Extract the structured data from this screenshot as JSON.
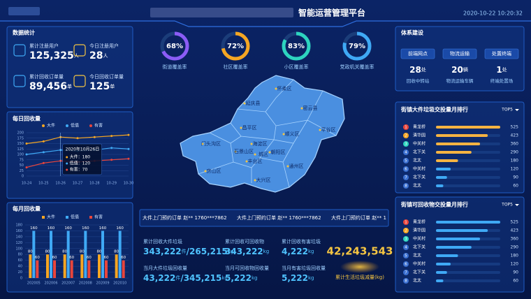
{
  "header": {
    "title": "智能运营管理平台",
    "datetime": "2020-10-22 10:20:32"
  },
  "stats_panel": {
    "title": "数据统计",
    "items": [
      {
        "label": "累计注册用户",
        "value": "125,325",
        "unit": "人"
      },
      {
        "label": "今日注册用户",
        "value": "28",
        "unit": "人"
      },
      {
        "label": "累计回收订单量",
        "value": "89,456",
        "unit": "单"
      },
      {
        "label": "今日回收订单量",
        "value": "125",
        "unit": "单"
      }
    ]
  },
  "daily_chart": {
    "type": "line",
    "title": "每日回收量",
    "categories": [
      "10-24",
      "10-25",
      "10-26",
      "10-27",
      "10-28",
      "10-29",
      "10-30"
    ],
    "series": [
      {
        "name": "大件",
        "color": "#f5a623",
        "values": [
          150,
          160,
          180,
          175,
          180,
          185,
          190
        ]
      },
      {
        "name": "低值",
        "color": "#3fa9f5",
        "values": [
          100,
          110,
          120,
          115,
          120,
          130,
          125
        ]
      },
      {
        "name": "有害",
        "color": "#e8453c",
        "values": [
          40,
          60,
          70,
          65,
          70,
          75,
          80
        ]
      }
    ],
    "ylim": [
      0,
      200
    ],
    "yticks": [
      0,
      25,
      50,
      75,
      100,
      125,
      150,
      175,
      200
    ],
    "tooltip": {
      "title": "2020年10月26日",
      "items": [
        "大件：180",
        "低值：120",
        "有害：70"
      ]
    }
  },
  "monthly_chart": {
    "type": "bar",
    "title": "每月回收量",
    "categories": [
      "202005",
      "202006",
      "202007",
      "202008",
      "202009",
      "202010"
    ],
    "series": [
      {
        "name": "大件",
        "color": "#f5a623",
        "values": [
          80,
          80,
          80,
          80,
          80,
          80
        ]
      },
      {
        "name": "低值",
        "color": "#3fa9f5",
        "values": [
          160,
          160,
          160,
          160,
          160,
          160
        ]
      },
      {
        "name": "有害",
        "color": "#e8453c",
        "values": [
          60,
          60,
          60,
          60,
          60,
          60
        ]
      }
    ],
    "ylim": [
      0,
      180
    ],
    "yticks": [
      0,
      20,
      40,
      60,
      80,
      100,
      120,
      140,
      160,
      180
    ]
  },
  "gauges": [
    {
      "value": 68,
      "label": "68%",
      "name": "街道覆盖率",
      "color": "#8b5cf6"
    },
    {
      "value": 72,
      "label": "72%",
      "name": "社区覆盖率",
      "color": "#f5a623"
    },
    {
      "value": 83,
      "label": "83%",
      "name": "小区覆盖率",
      "color": "#2dd4bf"
    },
    {
      "value": 79,
      "label": "79%",
      "name": "党政机关覆盖率",
      "color": "#3fa9f5"
    }
  ],
  "map": {
    "districts": [
      "怀柔区",
      "延庆县",
      "密云县",
      "昌平区",
      "顺义区",
      "平谷区",
      "门头沟区",
      "海淀区",
      "石景山区",
      "朝阳区",
      "城区",
      "丰台区",
      "房山区",
      "通州区",
      "大兴区"
    ]
  },
  "ticker": [
    "大件上门预约订单  赵**  1760***7862",
    "大件上门预约订单  赵**  1760***7862",
    "大件上门预约订单  赵**  1"
  ],
  "totals": [
    {
      "label": "累计回收大件垃圾",
      "value": "343,222",
      "unit": "件",
      "value2": "/265,215",
      "unit2": "kg"
    },
    {
      "label": "累计回收可回收物",
      "value": "343,222",
      "unit": "kg"
    },
    {
      "label": "累计回收有害垃圾",
      "value": "4,222",
      "unit": "kg"
    },
    {
      "label": "当月大件垃圾回收量",
      "value": "43,222",
      "unit": "件",
      "value2": "/345,215",
      "unit2": "kg"
    },
    {
      "label": "当月可回收物回收量",
      "value": "5,222",
      "unit": "kg"
    },
    {
      "label": "当月有害垃圾回收量",
      "value": "5,222",
      "unit": "kg"
    }
  ],
  "big_total": {
    "value": "42,243,543",
    "label": "累计生活垃圾减量(kg)"
  },
  "system": {
    "title": "体系建设",
    "items": [
      {
        "name": "前端网点",
        "value": "28",
        "unit": "处",
        "desc": "回收中转站"
      },
      {
        "name": "物流运输",
        "value": "20",
        "unit": "辆",
        "desc": "物流运输车辆"
      },
      {
        "name": "处置终端",
        "value": "1",
        "unit": "处",
        "desc": "终端处置场"
      }
    ]
  },
  "rank_lists": [
    {
      "title": "街镇大件垃圾交投量月排行",
      "filter": "TOP5",
      "rows": [
        {
          "rank": 1,
          "name": "青龙桥",
          "value": 525
        },
        {
          "rank": 2,
          "name": "清华园",
          "value": 423
        },
        {
          "rank": 3,
          "name": "中关村",
          "value": 360
        },
        {
          "rank": 4,
          "name": "北下关",
          "value": 290
        },
        {
          "rank": 5,
          "name": "北太",
          "value": 180
        },
        {
          "rank": 6,
          "name": "中关村",
          "value": 120
        },
        {
          "rank": 7,
          "name": "北下关",
          "value": 90
        },
        {
          "rank": 8,
          "name": "北太",
          "value": 60
        }
      ]
    },
    {
      "title": "街镇可回收物交投量月排行",
      "filter": "TOP5",
      "rows": [
        {
          "rank": 1,
          "name": "青龙桥",
          "value": 525
        },
        {
          "rank": 2,
          "name": "清华园",
          "value": 423
        },
        {
          "rank": 3,
          "name": "中关村",
          "value": 360
        },
        {
          "rank": 4,
          "name": "北下关",
          "value": 290
        },
        {
          "rank": 5,
          "name": "北太",
          "value": 180
        },
        {
          "rank": 6,
          "name": "中关村",
          "value": 120
        },
        {
          "rank": 7,
          "name": "北下关",
          "value": 90
        },
        {
          "rank": 8,
          "name": "北太",
          "value": 60
        }
      ]
    }
  ]
}
